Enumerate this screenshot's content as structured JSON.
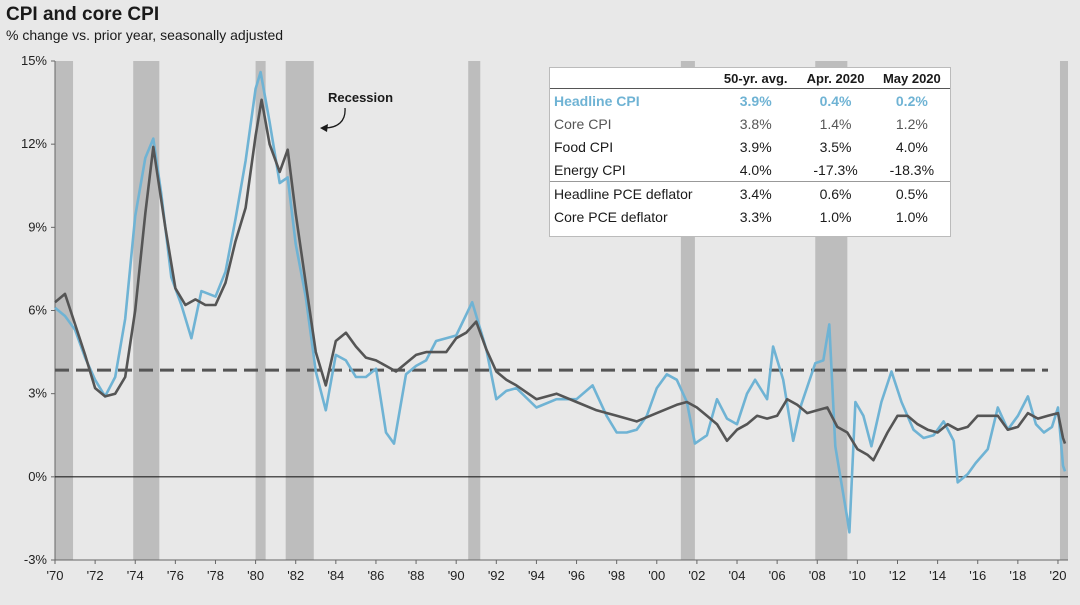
{
  "title": "CPI and core CPI",
  "subtitle": "% change vs. prior year, seasonally adjusted",
  "annotation": "Recession",
  "table": {
    "columns": [
      "",
      "50-yr. avg.",
      "Apr. 2020",
      "May 2020"
    ],
    "rows": [
      {
        "label": "Headline CPI",
        "avg": "3.9%",
        "apr": "0.4%",
        "may": "0.2%"
      },
      {
        "label": "Core CPI",
        "avg": "3.8%",
        "apr": "1.4%",
        "may": "1.2%"
      },
      {
        "label": "Food CPI",
        "avg": "3.9%",
        "apr": "3.5%",
        "may": "4.0%"
      },
      {
        "label": "Energy CPI",
        "avg": "4.0%",
        "apr": "-17.3%",
        "may": "-18.3%"
      },
      {
        "label": "Headline PCE deflator",
        "avg": "3.4%",
        "apr": "0.6%",
        "may": "0.5%"
      },
      {
        "label": "Core PCE deflator",
        "avg": "3.3%",
        "apr": "1.0%",
        "may": "1.0%"
      }
    ]
  },
  "chart_data": {
    "type": "line",
    "title": "CPI and core CPI",
    "subtitle": "% change vs. prior year, seasonally adjusted",
    "xlabel": "",
    "ylabel": "",
    "xlim": [
      1970,
      2020.5
    ],
    "ylim": [
      -3,
      15
    ],
    "y_ticks": [
      -3,
      0,
      3,
      6,
      9,
      12,
      15
    ],
    "y_tick_labels": [
      "-3%",
      "0%",
      "3%",
      "6%",
      "9%",
      "12%",
      "15%"
    ],
    "x_ticks": [
      1970,
      1972,
      1974,
      1976,
      1978,
      1980,
      1982,
      1984,
      1986,
      1988,
      1990,
      1992,
      1994,
      1996,
      1998,
      2000,
      2002,
      2004,
      2006,
      2008,
      2010,
      2012,
      2014,
      2016,
      2018,
      2020
    ],
    "x_tick_labels": [
      "'70",
      "'72",
      "'74",
      "'76",
      "'78",
      "'80",
      "'82",
      "'84",
      "'86",
      "'88",
      "'90",
      "'92",
      "'94",
      "'96",
      "'98",
      "'00",
      "'02",
      "'04",
      "'06",
      "'08",
      "'10",
      "'12",
      "'14",
      "'16",
      "'18",
      "'20"
    ],
    "reference_line": 3.85,
    "recessions": [
      [
        1970.0,
        1970.9
      ],
      [
        1973.9,
        1975.2
      ],
      [
        1980.0,
        1980.5
      ],
      [
        1981.5,
        1982.9
      ],
      [
        1990.6,
        1991.2
      ],
      [
        2001.2,
        2001.9
      ],
      [
        2007.9,
        2009.5
      ],
      [
        2020.1,
        2020.5
      ]
    ],
    "colors": {
      "headline": "#6fb3d4",
      "core": "#555555",
      "recession": "#bdbdbd",
      "background": "#e8e8e8"
    },
    "series": [
      {
        "name": "Headline CPI",
        "points": [
          [
            1970.0,
            6.1
          ],
          [
            1970.5,
            5.8
          ],
          [
            1971.0,
            5.3
          ],
          [
            1971.5,
            4.3
          ],
          [
            1972.0,
            3.5
          ],
          [
            1972.5,
            2.9
          ],
          [
            1973.0,
            3.6
          ],
          [
            1973.5,
            5.7
          ],
          [
            1974.0,
            9.4
          ],
          [
            1974.5,
            11.5
          ],
          [
            1974.9,
            12.2
          ],
          [
            1975.3,
            10.2
          ],
          [
            1975.8,
            7.2
          ],
          [
            1976.3,
            6.2
          ],
          [
            1976.8,
            5.0
          ],
          [
            1977.3,
            6.7
          ],
          [
            1978.0,
            6.5
          ],
          [
            1978.5,
            7.4
          ],
          [
            1979.0,
            9.3
          ],
          [
            1979.5,
            11.4
          ],
          [
            1980.0,
            14.0
          ],
          [
            1980.25,
            14.6
          ],
          [
            1980.7,
            12.8
          ],
          [
            1981.2,
            10.6
          ],
          [
            1981.6,
            10.8
          ],
          [
            1982.0,
            8.4
          ],
          [
            1982.5,
            6.5
          ],
          [
            1983.0,
            3.8
          ],
          [
            1983.5,
            2.4
          ],
          [
            1984.0,
            4.4
          ],
          [
            1984.5,
            4.2
          ],
          [
            1985.0,
            3.6
          ],
          [
            1985.5,
            3.6
          ],
          [
            1986.0,
            3.9
          ],
          [
            1986.5,
            1.6
          ],
          [
            1986.9,
            1.2
          ],
          [
            1987.5,
            3.7
          ],
          [
            1988.0,
            4.0
          ],
          [
            1988.5,
            4.2
          ],
          [
            1989.0,
            4.9
          ],
          [
            1989.5,
            5.0
          ],
          [
            1990.0,
            5.1
          ],
          [
            1990.8,
            6.3
          ],
          [
            1991.5,
            4.6
          ],
          [
            1992.0,
            2.8
          ],
          [
            1992.5,
            3.1
          ],
          [
            1993.0,
            3.2
          ],
          [
            1994.0,
            2.5
          ],
          [
            1995.0,
            2.8
          ],
          [
            1996.0,
            2.8
          ],
          [
            1996.8,
            3.3
          ],
          [
            1997.5,
            2.2
          ],
          [
            1998.0,
            1.6
          ],
          [
            1998.5,
            1.6
          ],
          [
            1999.0,
            1.7
          ],
          [
            1999.5,
            2.2
          ],
          [
            2000.0,
            3.2
          ],
          [
            2000.5,
            3.7
          ],
          [
            2001.0,
            3.5
          ],
          [
            2001.5,
            2.7
          ],
          [
            2001.9,
            1.2
          ],
          [
            2002.5,
            1.5
          ],
          [
            2003.0,
            2.8
          ],
          [
            2003.5,
            2.1
          ],
          [
            2004.0,
            1.9
          ],
          [
            2004.5,
            3.0
          ],
          [
            2004.9,
            3.5
          ],
          [
            2005.5,
            2.8
          ],
          [
            2005.8,
            4.7
          ],
          [
            2006.3,
            3.5
          ],
          [
            2006.8,
            1.3
          ],
          [
            2007.2,
            2.6
          ],
          [
            2007.9,
            4.1
          ],
          [
            2008.3,
            4.2
          ],
          [
            2008.6,
            5.5
          ],
          [
            2008.9,
            1.1
          ],
          [
            2009.5,
            -1.5
          ],
          [
            2009.6,
            -2.0
          ],
          [
            2009.9,
            2.7
          ],
          [
            2010.3,
            2.2
          ],
          [
            2010.7,
            1.1
          ],
          [
            2011.2,
            2.7
          ],
          [
            2011.7,
            3.8
          ],
          [
            2012.2,
            2.7
          ],
          [
            2012.8,
            1.7
          ],
          [
            2013.3,
            1.4
          ],
          [
            2013.8,
            1.5
          ],
          [
            2014.3,
            2.0
          ],
          [
            2014.8,
            1.3
          ],
          [
            2015.0,
            -0.2
          ],
          [
            2015.5,
            0.1
          ],
          [
            2015.9,
            0.5
          ],
          [
            2016.5,
            1.0
          ],
          [
            2017.0,
            2.5
          ],
          [
            2017.5,
            1.7
          ],
          [
            2018.0,
            2.2
          ],
          [
            2018.5,
            2.9
          ],
          [
            2018.9,
            1.9
          ],
          [
            2019.3,
            1.6
          ],
          [
            2019.7,
            1.8
          ],
          [
            2020.0,
            2.5
          ],
          [
            2020.25,
            0.4
          ],
          [
            2020.35,
            0.2
          ]
        ]
      },
      {
        "name": "Core CPI",
        "points": [
          [
            1970.0,
            6.3
          ],
          [
            1970.5,
            6.6
          ],
          [
            1971.0,
            5.5
          ],
          [
            1971.5,
            4.4
          ],
          [
            1972.0,
            3.2
          ],
          [
            1972.5,
            2.9
          ],
          [
            1973.0,
            3.0
          ],
          [
            1973.5,
            3.6
          ],
          [
            1974.0,
            6.0
          ],
          [
            1974.5,
            9.5
          ],
          [
            1974.9,
            11.9
          ],
          [
            1975.5,
            9.0
          ],
          [
            1976.0,
            6.8
          ],
          [
            1976.5,
            6.2
          ],
          [
            1977.0,
            6.4
          ],
          [
            1977.5,
            6.2
          ],
          [
            1978.0,
            6.2
          ],
          [
            1978.5,
            7.0
          ],
          [
            1979.0,
            8.5
          ],
          [
            1979.5,
            9.7
          ],
          [
            1980.0,
            12.3
          ],
          [
            1980.3,
            13.6
          ],
          [
            1980.7,
            12.0
          ],
          [
            1981.2,
            11.0
          ],
          [
            1981.6,
            11.8
          ],
          [
            1982.0,
            9.5
          ],
          [
            1982.5,
            7.0
          ],
          [
            1983.0,
            4.5
          ],
          [
            1983.5,
            3.3
          ],
          [
            1984.0,
            4.9
          ],
          [
            1984.5,
            5.2
          ],
          [
            1985.0,
            4.7
          ],
          [
            1985.5,
            4.3
          ],
          [
            1986.0,
            4.2
          ],
          [
            1986.5,
            4.0
          ],
          [
            1987.0,
            3.8
          ],
          [
            1987.5,
            4.1
          ],
          [
            1988.0,
            4.4
          ],
          [
            1988.5,
            4.5
          ],
          [
            1989.0,
            4.5
          ],
          [
            1989.5,
            4.5
          ],
          [
            1990.0,
            5.0
          ],
          [
            1990.5,
            5.2
          ],
          [
            1991.0,
            5.6
          ],
          [
            1991.5,
            4.6
          ],
          [
            1992.0,
            3.8
          ],
          [
            1992.5,
            3.5
          ],
          [
            1993.0,
            3.3
          ],
          [
            1994.0,
            2.8
          ],
          [
            1995.0,
            3.0
          ],
          [
            1996.0,
            2.7
          ],
          [
            1997.0,
            2.4
          ],
          [
            1998.0,
            2.2
          ],
          [
            1999.0,
            2.0
          ],
          [
            2000.0,
            2.3
          ],
          [
            2001.0,
            2.6
          ],
          [
            2001.5,
            2.7
          ],
          [
            2002.0,
            2.5
          ],
          [
            2002.5,
            2.2
          ],
          [
            2003.0,
            1.9
          ],
          [
            2003.5,
            1.3
          ],
          [
            2004.0,
            1.7
          ],
          [
            2004.5,
            1.9
          ],
          [
            2005.0,
            2.2
          ],
          [
            2005.5,
            2.1
          ],
          [
            2006.0,
            2.2
          ],
          [
            2006.5,
            2.8
          ],
          [
            2007.0,
            2.6
          ],
          [
            2007.5,
            2.3
          ],
          [
            2008.0,
            2.4
          ],
          [
            2008.5,
            2.5
          ],
          [
            2009.0,
            1.8
          ],
          [
            2009.5,
            1.6
          ],
          [
            2010.0,
            1.0
          ],
          [
            2010.5,
            0.8
          ],
          [
            2010.8,
            0.6
          ],
          [
            2011.5,
            1.6
          ],
          [
            2012.0,
            2.2
          ],
          [
            2012.5,
            2.2
          ],
          [
            2013.0,
            1.9
          ],
          [
            2013.5,
            1.7
          ],
          [
            2014.0,
            1.6
          ],
          [
            2014.5,
            1.9
          ],
          [
            2015.0,
            1.7
          ],
          [
            2015.5,
            1.8
          ],
          [
            2016.0,
            2.2
          ],
          [
            2016.5,
            2.2
          ],
          [
            2017.0,
            2.2
          ],
          [
            2017.5,
            1.7
          ],
          [
            2018.0,
            1.8
          ],
          [
            2018.5,
            2.3
          ],
          [
            2019.0,
            2.1
          ],
          [
            2019.5,
            2.2
          ],
          [
            2020.0,
            2.3
          ],
          [
            2020.25,
            1.4
          ],
          [
            2020.35,
            1.2
          ]
        ]
      }
    ]
  }
}
